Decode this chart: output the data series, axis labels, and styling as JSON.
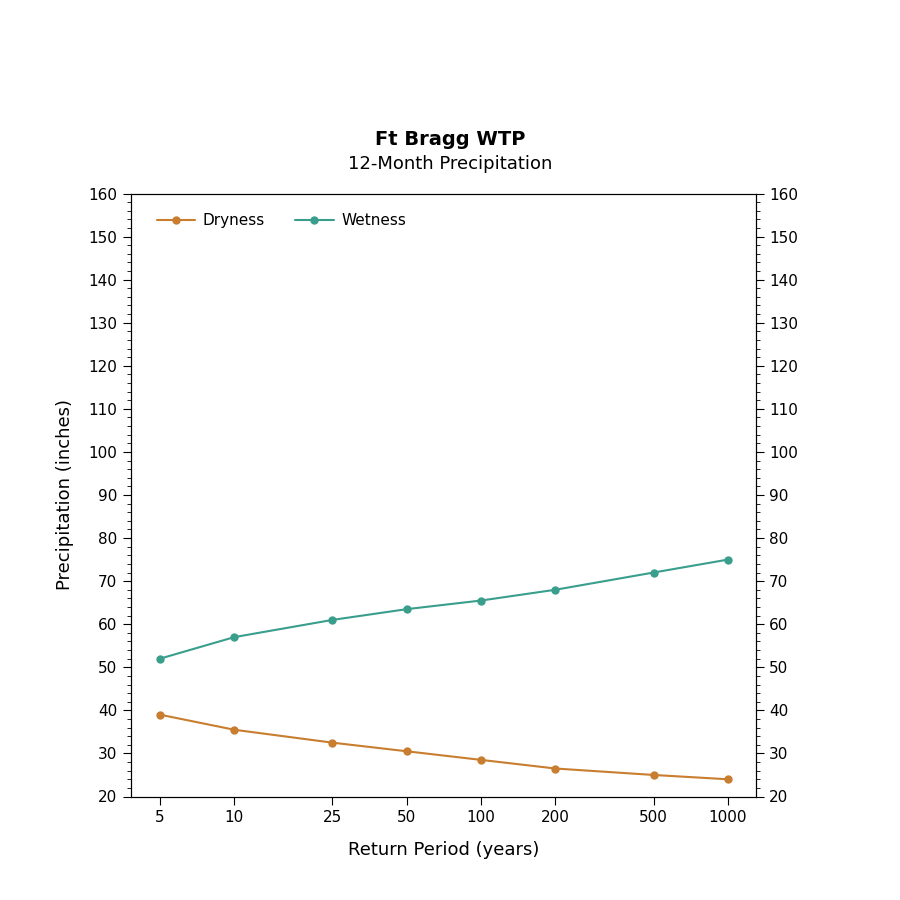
{
  "title_line1": "Ft Bragg WTP",
  "title_line2": "12-Month Precipitation",
  "xlabel": "Return Period (years)",
  "ylabel": "Precipitation (inches)",
  "x_values": [
    5,
    10,
    25,
    50,
    100,
    200,
    500,
    1000
  ],
  "dryness_values": [
    39.0,
    35.5,
    32.5,
    30.5,
    28.5,
    26.5,
    25.0,
    24.0
  ],
  "wetness_values": [
    52.0,
    57.0,
    61.0,
    63.5,
    65.5,
    68.0,
    72.0,
    75.0
  ],
  "dryness_color": "#C87D2F",
  "wetness_color": "#3A9E8C",
  "ylim": [
    20,
    160
  ],
  "yticks_major": [
    20,
    30,
    40,
    50,
    60,
    70,
    80,
    90,
    100,
    110,
    120,
    130,
    140,
    150,
    160
  ],
  "background_color": "#FFFFFF",
  "plot_bg_color": "#FFFFFF",
  "title_fontsize": 14,
  "subtitle_fontsize": 13,
  "axis_label_fontsize": 13,
  "tick_fontsize": 11,
  "legend_fontsize": 11,
  "linewidth": 1.5,
  "marker_size": 5,
  "xlim_left": 3.8,
  "xlim_right": 1300
}
